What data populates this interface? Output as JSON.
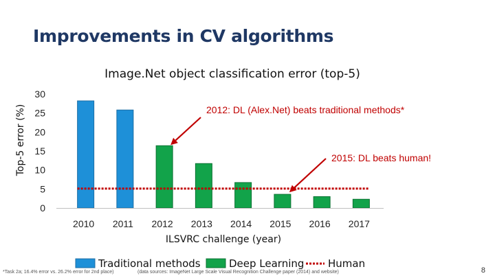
{
  "slide": {
    "title": "Improvements in CV algorithms",
    "footnote": "*Task 2a; 16.4% error vs. 26.2% error for 2nd place)",
    "sources": "(data sources: ImageNet Large Scale Visual Recognition Challenge paper (2014) and website)",
    "page_number": "8"
  },
  "chart_data": {
    "type": "bar",
    "title": "Image.Net object classification error (top-5)",
    "xlabel": "ILSVRC challenge (year)",
    "ylabel": "Top-5 error (%)",
    "ylim": [
      0,
      30
    ],
    "yticks": [
      "0",
      "5",
      "10",
      "15",
      "20",
      "25",
      "30"
    ],
    "categories": [
      "2010",
      "2011",
      "2012",
      "2013",
      "2014",
      "2015",
      "2016",
      "2017"
    ],
    "values": [
      28.2,
      25.8,
      16.4,
      11.7,
      6.7,
      3.6,
      3.0,
      2.3
    ],
    "bar_types": [
      "traditional",
      "traditional",
      "deep",
      "deep",
      "deep",
      "deep",
      "deep",
      "deep"
    ],
    "human_level": 5.1,
    "legend": [
      {
        "key": "traditional",
        "label": "Traditional methods",
        "color": "#1e90d8"
      },
      {
        "key": "deep",
        "label": "Deep Learning",
        "color": "#12a34a"
      },
      {
        "key": "human",
        "label": "Human",
        "color": "#c00000"
      }
    ],
    "annotations": [
      {
        "text": "2012: DL (Alex.Net) beats traditional methods*",
        "target": "2012"
      },
      {
        "text": "2015: DL beats human!",
        "target": "2015"
      }
    ],
    "grid": false,
    "legend_position": "bottom"
  }
}
